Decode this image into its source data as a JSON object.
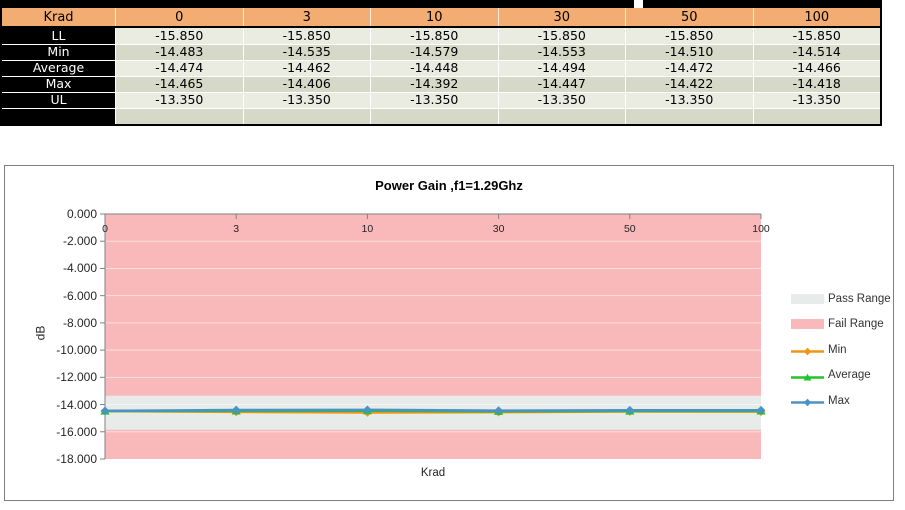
{
  "table": {
    "header": {
      "corner": "Krad",
      "columns": [
        "0",
        "3",
        "10",
        "30",
        "50",
        "100"
      ]
    },
    "rows": [
      {
        "label": "LL",
        "values": [
          "-15.850",
          "-15.850",
          "-15.850",
          "-15.850",
          "-15.850",
          "-15.850"
        ]
      },
      {
        "label": "Min",
        "values": [
          "-14.483",
          "-14.535",
          "-14.579",
          "-14.553",
          "-14.510",
          "-14.514"
        ]
      },
      {
        "label": "Average",
        "values": [
          "-14.474",
          "-14.462",
          "-14.448",
          "-14.494",
          "-14.472",
          "-14.466"
        ]
      },
      {
        "label": "Max",
        "values": [
          "-14.465",
          "-14.406",
          "-14.392",
          "-14.447",
          "-14.422",
          "-14.418"
        ]
      },
      {
        "label": "UL",
        "values": [
          "-13.350",
          "-13.350",
          "-13.350",
          "-13.350",
          "-13.350",
          "-13.350"
        ]
      },
      {
        "label": "",
        "values": [
          "",
          "",
          "",
          "",
          "",
          ""
        ]
      }
    ],
    "colors": {
      "header_bg": "#F3AC72",
      "label_col_bg": "#000000",
      "row_light": "#EAEBE1",
      "row_dark": "#D6D9C8"
    }
  },
  "chart_data": {
    "type": "line",
    "title": "Power Gain ,f1=1.29Ghz",
    "xlabel": "Krad",
    "ylabel": "dB",
    "categories": [
      "0",
      "3",
      "10",
      "30",
      "50",
      "100"
    ],
    "ylim": [
      0,
      -18
    ],
    "yticks": [
      "0.000",
      "-2.000",
      "-4.000",
      "-6.000",
      "-8.000",
      "-10.000",
      "-12.000",
      "-14.000",
      "-16.000",
      "-18.000"
    ],
    "grid": "faint white horizontal lines every 2 dB",
    "legend_position": "right",
    "pass_range": {
      "upper": -13.35,
      "lower": -15.85,
      "color": "#E7EBEA"
    },
    "fail_range": {
      "color": "#F9B8BA"
    },
    "series": [
      {
        "name": "Min",
        "color": "#F09612",
        "marker": "diamond",
        "values": [
          -14.483,
          -14.535,
          -14.579,
          -14.553,
          -14.51,
          -14.514
        ]
      },
      {
        "name": "Average",
        "color": "#21C32A",
        "marker": "triangle",
        "values": [
          -14.474,
          -14.462,
          -14.448,
          -14.494,
          -14.472,
          -14.466
        ]
      },
      {
        "name": "Max",
        "color": "#4B92C5",
        "marker": "diamond",
        "values": [
          -14.465,
          -14.406,
          -14.392,
          -14.447,
          -14.422,
          -14.418
        ]
      }
    ],
    "legend": [
      {
        "label": "Pass Range",
        "type": "area",
        "color": "#E7EBEA"
      },
      {
        "label": "Fail Range",
        "type": "area",
        "color": "#F9B8BA"
      },
      {
        "label": "Min",
        "type": "line",
        "color": "#F09612",
        "marker": "diamond"
      },
      {
        "label": "Average",
        "type": "line",
        "color": "#21C32A",
        "marker": "triangle"
      },
      {
        "label": "Max",
        "type": "line",
        "color": "#4B92C5",
        "marker": "diamond"
      }
    ]
  }
}
